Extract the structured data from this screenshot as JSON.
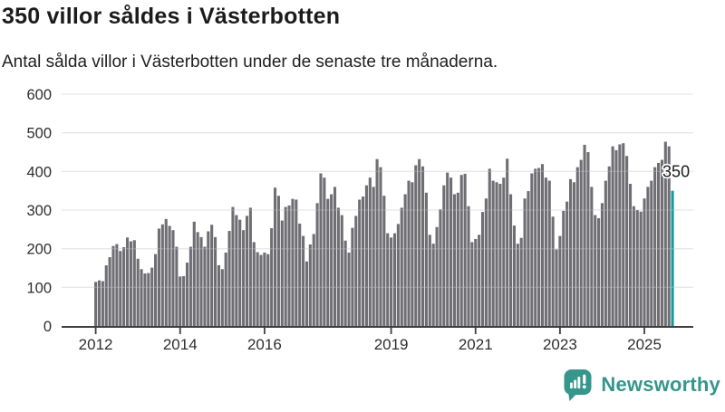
{
  "header": {
    "title": "350 villor såldes i Västerbotten",
    "subtitle": "Antal sålda villor i Västerbotten under de senaste tre månaderna."
  },
  "chart_data": {
    "type": "bar",
    "title": "350 villor såldes i Västerbotten",
    "subtitle": "Antal sålda villor i Västerbotten under de senaste tre månaderna.",
    "x_start": "2012-01",
    "x_end": "2025-09",
    "frequency": "monthly",
    "values": [
      114,
      118,
      116,
      157,
      178,
      207,
      212,
      194,
      204,
      229,
      219,
      222,
      174,
      147,
      136,
      137,
      151,
      186,
      252,
      263,
      277,
      259,
      248,
      205,
      128,
      129,
      164,
      205,
      270,
      243,
      230,
      205,
      245,
      262,
      230,
      157,
      147,
      190,
      246,
      308,
      287,
      275,
      248,
      285,
      306,
      217,
      191,
      184,
      190,
      186,
      253,
      358,
      337,
      273,
      308,
      312,
      329,
      327,
      265,
      233,
      167,
      211,
      238,
      318,
      395,
      384,
      329,
      341,
      360,
      306,
      287,
      221,
      190,
      254,
      285,
      327,
      335,
      364,
      384,
      360,
      432,
      411,
      337,
      240,
      229,
      240,
      264,
      306,
      341,
      376,
      372,
      416,
      432,
      413,
      345,
      236,
      213,
      256,
      302,
      364,
      397,
      384,
      341,
      345,
      391,
      394,
      310,
      217,
      225,
      236,
      295,
      330,
      407,
      376,
      372,
      368,
      384,
      433,
      341,
      260,
      213,
      228,
      330,
      349,
      395,
      407,
      409,
      419,
      384,
      376,
      283,
      198,
      233,
      298,
      322,
      380,
      372,
      411,
      430,
      469,
      450,
      360,
      287,
      279,
      318,
      376,
      413,
      465,
      455,
      470,
      473,
      440,
      368,
      310,
      300,
      296,
      330,
      360,
      376,
      411,
      422,
      430,
      477,
      465,
      350
    ],
    "highlight_last_bar": true,
    "annotation": {
      "text": "350",
      "value": 350,
      "attached_to": "last-bar"
    },
    "ylim": [
      0,
      600
    ],
    "y_axis": {
      "ticks": [
        0,
        100,
        200,
        300,
        400,
        500,
        600
      ]
    },
    "x_axis": {
      "tick_labels": [
        "2012",
        "2014",
        "2016",
        "2019",
        "2021",
        "2023",
        "2025"
      ],
      "tick_month_indices": [
        0,
        24,
        48,
        84,
        108,
        132,
        156
      ]
    },
    "grid": "horizontal",
    "legend": "none",
    "colors": {
      "bar": "#6e6e73",
      "highlight_bar": "#189a9b",
      "gridline": "#e2e2e2",
      "axis_line": "#3f3f3f",
      "tick_label": "#2e2e2e",
      "annotation_text": "#1a1a1a"
    }
  },
  "footer": {
    "brand": "Newsworthy",
    "logo_color": "#35968c"
  }
}
